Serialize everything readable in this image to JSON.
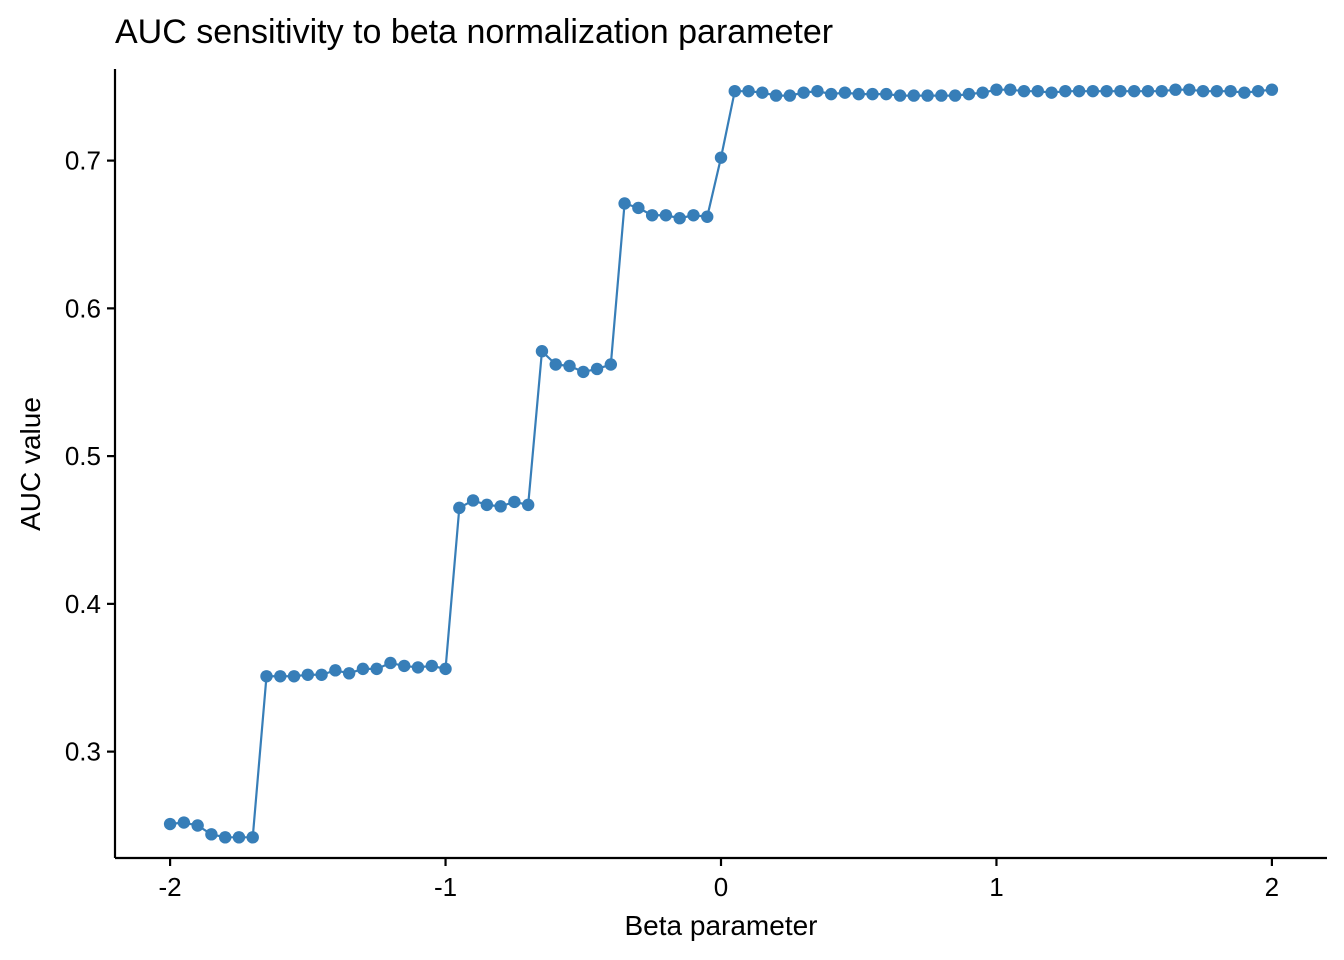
{
  "chart_data": {
    "type": "line",
    "title": "AUC sensitivity to beta normalization parameter",
    "xlabel": "Beta parameter",
    "ylabel": "AUC value",
    "xlim": [
      -2.2,
      2.2
    ],
    "ylim": [
      0.228,
      0.762
    ],
    "x_ticks": [
      -2,
      -1,
      0,
      1,
      2
    ],
    "x_tick_labels": [
      "-2",
      "-1",
      "0",
      "1",
      "2"
    ],
    "y_ticks": [
      0.3,
      0.4,
      0.5,
      0.6,
      0.7
    ],
    "y_tick_labels": [
      "0.3",
      "0.4",
      "0.5",
      "0.6",
      "0.7"
    ],
    "grid": false,
    "legend": "none",
    "color": "#377EB8",
    "series": [
      {
        "x": [
          -2,
          -1.95,
          -1.9,
          -1.85,
          -1.8,
          -1.75,
          -1.7,
          -1.65,
          -1.6,
          -1.55,
          -1.5,
          -1.45,
          -1.4,
          -1.35,
          -1.3,
          -1.25,
          -1.2,
          -1.15,
          -1.1,
          -1.05,
          -1,
          -0.95,
          -0.9,
          -0.85,
          -0.8,
          -0.75,
          -0.7,
          -0.65,
          -0.6,
          -0.55,
          -0.5,
          -0.45,
          -0.4,
          -0.35,
          -0.3,
          -0.25,
          -0.2,
          -0.15,
          -0.1,
          -0.05,
          0,
          0.05,
          0.1,
          0.15,
          0.2,
          0.25,
          0.3,
          0.35,
          0.4,
          0.45,
          0.5,
          0.55,
          0.6,
          0.65,
          0.7,
          0.75,
          0.8,
          0.85,
          0.9,
          0.95,
          1,
          1.05,
          1.1,
          1.15,
          1.2,
          1.25,
          1.3,
          1.35,
          1.4,
          1.45,
          1.5,
          1.55,
          1.6,
          1.65,
          1.7,
          1.75,
          1.8,
          1.85,
          1.9,
          1.95,
          2
        ],
        "y": [
          0.251,
          0.252,
          0.25,
          0.244,
          0.242,
          0.242,
          0.242,
          0.351,
          0.351,
          0.351,
          0.352,
          0.352,
          0.355,
          0.353,
          0.356,
          0.356,
          0.36,
          0.358,
          0.357,
          0.358,
          0.356,
          0.465,
          0.47,
          0.467,
          0.466,
          0.469,
          0.467,
          0.571,
          0.562,
          0.561,
          0.557,
          0.559,
          0.562,
          0.671,
          0.668,
          0.663,
          0.663,
          0.661,
          0.663,
          0.662,
          0.702,
          0.747,
          0.747,
          0.746,
          0.744,
          0.744,
          0.746,
          0.747,
          0.745,
          0.746,
          0.745,
          0.745,
          0.745,
          0.744,
          0.744,
          0.744,
          0.744,
          0.744,
          0.745,
          0.746,
          0.748,
          0.748,
          0.747,
          0.747,
          0.746,
          0.747,
          0.747,
          0.747,
          0.747,
          0.747,
          0.747,
          0.747,
          0.747,
          0.748,
          0.748,
          0.747,
          0.747,
          0.747,
          0.746,
          0.747,
          0.748
        ]
      }
    ]
  }
}
